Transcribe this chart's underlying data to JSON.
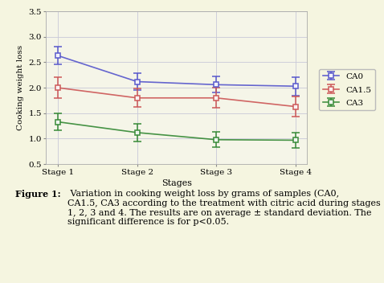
{
  "stages": [
    "Stage 1",
    "Stage 2",
    "Stage 3",
    "Stage 4"
  ],
  "CA0": {
    "means": [
      2.63,
      2.12,
      2.06,
      2.03
    ],
    "errors": [
      0.17,
      0.17,
      0.16,
      0.18
    ],
    "color": "#5555cc",
    "label": "CA0"
  },
  "CA1_5": {
    "means": [
      2.0,
      1.8,
      1.8,
      1.63
    ],
    "errors": [
      0.2,
      0.18,
      0.2,
      0.2
    ],
    "color": "#cc5555",
    "label": "CA1.5"
  },
  "CA3": {
    "means": [
      1.33,
      1.12,
      0.98,
      0.97
    ],
    "errors": [
      0.17,
      0.17,
      0.15,
      0.15
    ],
    "color": "#338833",
    "label": "CA3"
  },
  "xlabel": "Stages",
  "ylabel": "Cooking weight loss",
  "ylim": [
    0.5,
    3.5
  ],
  "yticks": [
    0.5,
    1.0,
    1.5,
    2.0,
    2.5,
    3.0,
    3.5
  ],
  "page_background": "#f5f5e0",
  "plot_background": "#f5f5e8",
  "grid_color": "#c8c8d8",
  "caption_bold": "Figure 1:",
  "caption_normal": " Variation in cooking weight loss by grams of samples (CA0,\nCA1.5, CA3 according to the treatment with citric acid during stages\n1, 2, 3 and 4. The results are on average ± standard deviation. The\nsignificant difference is for p<0.05.",
  "font_family": "serif"
}
